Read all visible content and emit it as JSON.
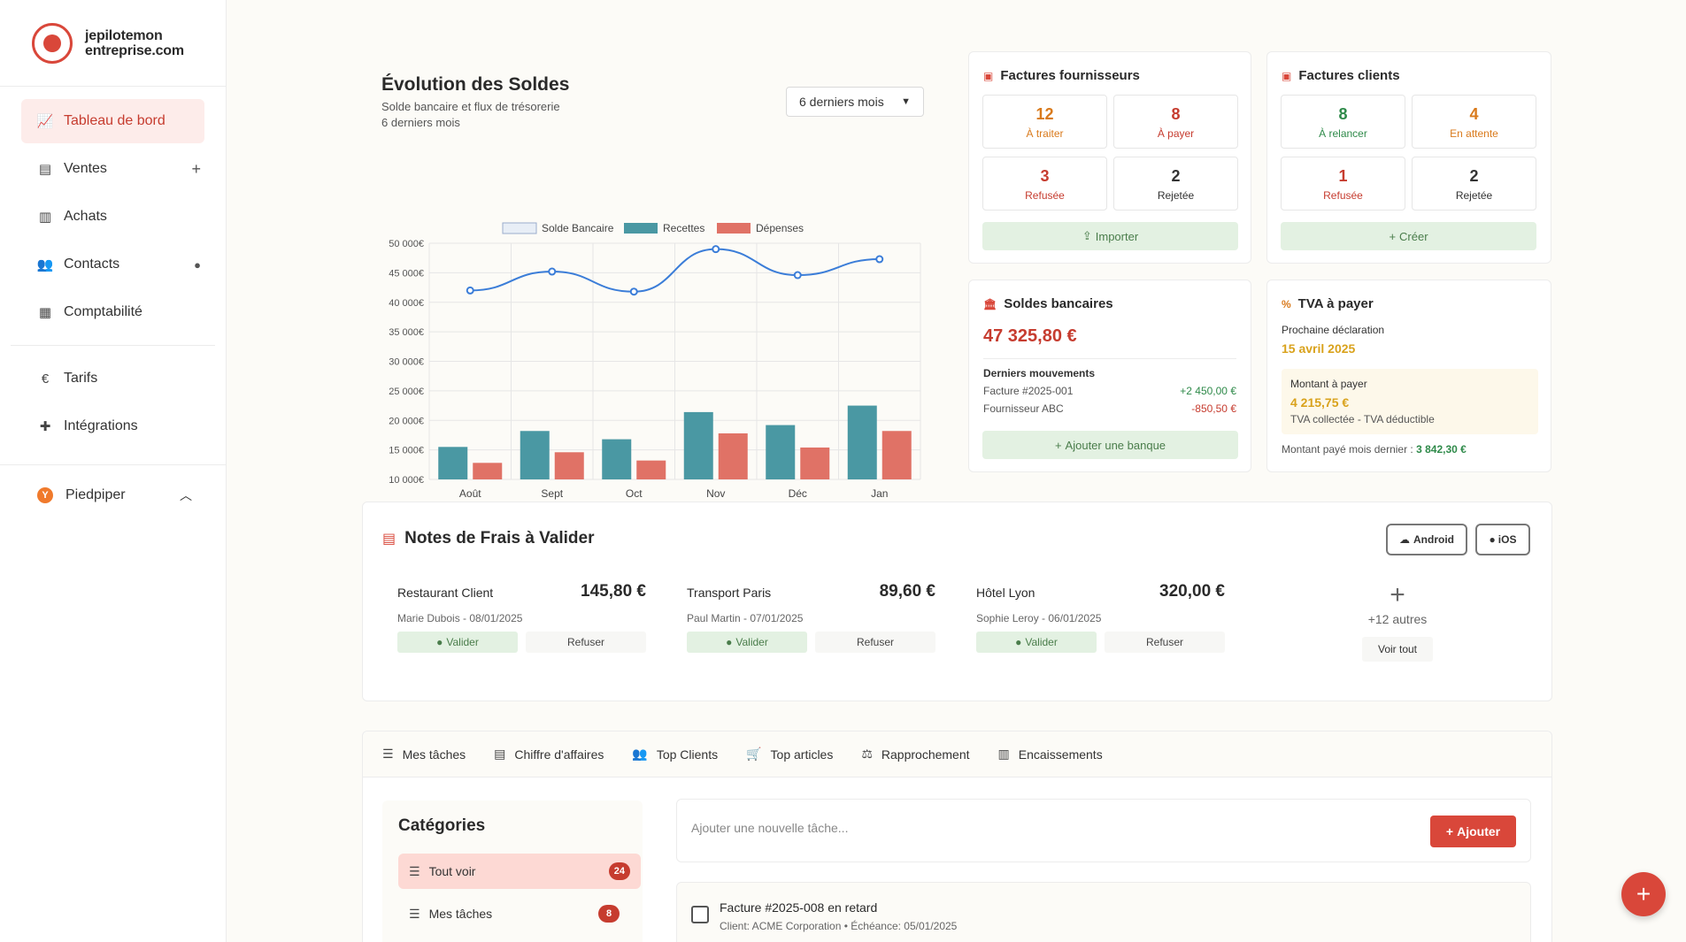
{
  "brand": {
    "line1": "jepilotemon",
    "line2": "entreprise.com"
  },
  "sidebar": {
    "items": [
      {
        "label": "Tableau de bord",
        "icon": "chart-line-icon"
      },
      {
        "label": "Ventes",
        "icon": "file-icon"
      },
      {
        "label": "Achats",
        "icon": "file-import-icon"
      },
      {
        "label": "Contacts",
        "icon": "users-icon"
      },
      {
        "label": "Comptabilité",
        "icon": "calculator-icon"
      },
      {
        "label": "Tarifs",
        "icon": "euro-icon"
      },
      {
        "label": "Intégrations",
        "icon": "puzzle-icon"
      }
    ],
    "org": {
      "initial": "Y",
      "name": "Piedpiper"
    }
  },
  "soldes": {
    "title": "Évolution des Soldes",
    "subtitle1": "Solde bancaire et flux de trésorerie",
    "subtitle2": "6 derniers mois",
    "period": "6 derniers mois"
  },
  "chart_data": {
    "type": "bar",
    "categories": [
      "Août",
      "Sept",
      "Oct",
      "Nov",
      "Déc",
      "Jan"
    ],
    "series": [
      {
        "name": "Solde Bancaire",
        "type": "line",
        "color": "#3b7dd8",
        "values": [
          42000,
          45200,
          41800,
          49000,
          44600,
          47300
        ]
      },
      {
        "name": "Recettes",
        "type": "bar",
        "color": "#4a98a3",
        "values": [
          15500,
          18200,
          16800,
          21400,
          19200,
          22500
        ]
      },
      {
        "name": "Dépenses",
        "type": "bar",
        "color": "#e07266",
        "values": [
          12800,
          14600,
          13200,
          17800,
          15400,
          18200
        ]
      }
    ],
    "ylim": [
      10000,
      50000
    ],
    "yticks": [
      "50 000€",
      "45 000€",
      "40 000€",
      "35 000€",
      "30 000€",
      "25 000€",
      "20 000€",
      "15 000€",
      "10 000€"
    ],
    "legend": "top",
    "grid": true
  },
  "fournisseurs": {
    "title": "Factures fournisseurs",
    "stats": [
      {
        "num": "12",
        "label": "À traiter"
      },
      {
        "num": "8",
        "label": "À payer"
      },
      {
        "num": "3",
        "label": "Refusée"
      },
      {
        "num": "2",
        "label": "Rejetée"
      }
    ],
    "button": "Importer"
  },
  "clients": {
    "title": "Factures clients",
    "stats": [
      {
        "num": "8",
        "label": "À relancer"
      },
      {
        "num": "4",
        "label": "En attente"
      },
      {
        "num": "1",
        "label": "Refusée"
      },
      {
        "num": "2",
        "label": "Rejetée"
      }
    ],
    "button": "Créer"
  },
  "banques": {
    "title": "Soldes bancaires",
    "amount": "47 325,80 €",
    "section": "Derniers mouvements",
    "movements": [
      {
        "label": "Facture #2025-001",
        "amount": "+2 450,00 €"
      },
      {
        "label": "Fournisseur ABC",
        "amount": "-850,50 €"
      }
    ],
    "button": "Ajouter une banque"
  },
  "tva": {
    "title": "TVA à payer",
    "next_label": "Prochaine déclaration",
    "next_date": "15 avril 2025",
    "due_label": "Montant à payer",
    "due_amount": "4 215,75 €",
    "due_note": "TVA collectée - TVA déductible",
    "last_label": "Montant payé mois dernier :",
    "last_amount": "3 842,30 €"
  },
  "notes": {
    "title": "Notes de Frais à Valider",
    "android": "Android",
    "ios": "iOS",
    "items": [
      {
        "name": "Restaurant Client",
        "amount": "145,80 €",
        "meta": "Marie Dubois - 08/01/2025"
      },
      {
        "name": "Transport Paris",
        "amount": "89,60 €",
        "meta": "Paul Martin - 07/01/2025"
      },
      {
        "name": "Hôtel Lyon",
        "amount": "320,00 €",
        "meta": "Sophie Leroy - 06/01/2025"
      }
    ],
    "validate": "Valider",
    "refuse": "Refuser",
    "more": "+12 autres",
    "see_all": "Voir tout"
  },
  "tabs": [
    "Mes tâches",
    "Chiffre d'affaires",
    "Top Clients",
    "Top articles",
    "Rapprochement",
    "Encaissements"
  ],
  "categories": {
    "title": "Catégories",
    "items": [
      {
        "label": "Tout voir",
        "count": "24"
      },
      {
        "label": "Mes tâches",
        "count": "8"
      }
    ]
  },
  "tasks": {
    "placeholder": "Ajouter une nouvelle tâche...",
    "add": "Ajouter",
    "items": [
      {
        "name": "Facture #2025-008 en retard",
        "meta": "Client: ACME Corporation • Échéance: 05/01/2025"
      }
    ]
  }
}
